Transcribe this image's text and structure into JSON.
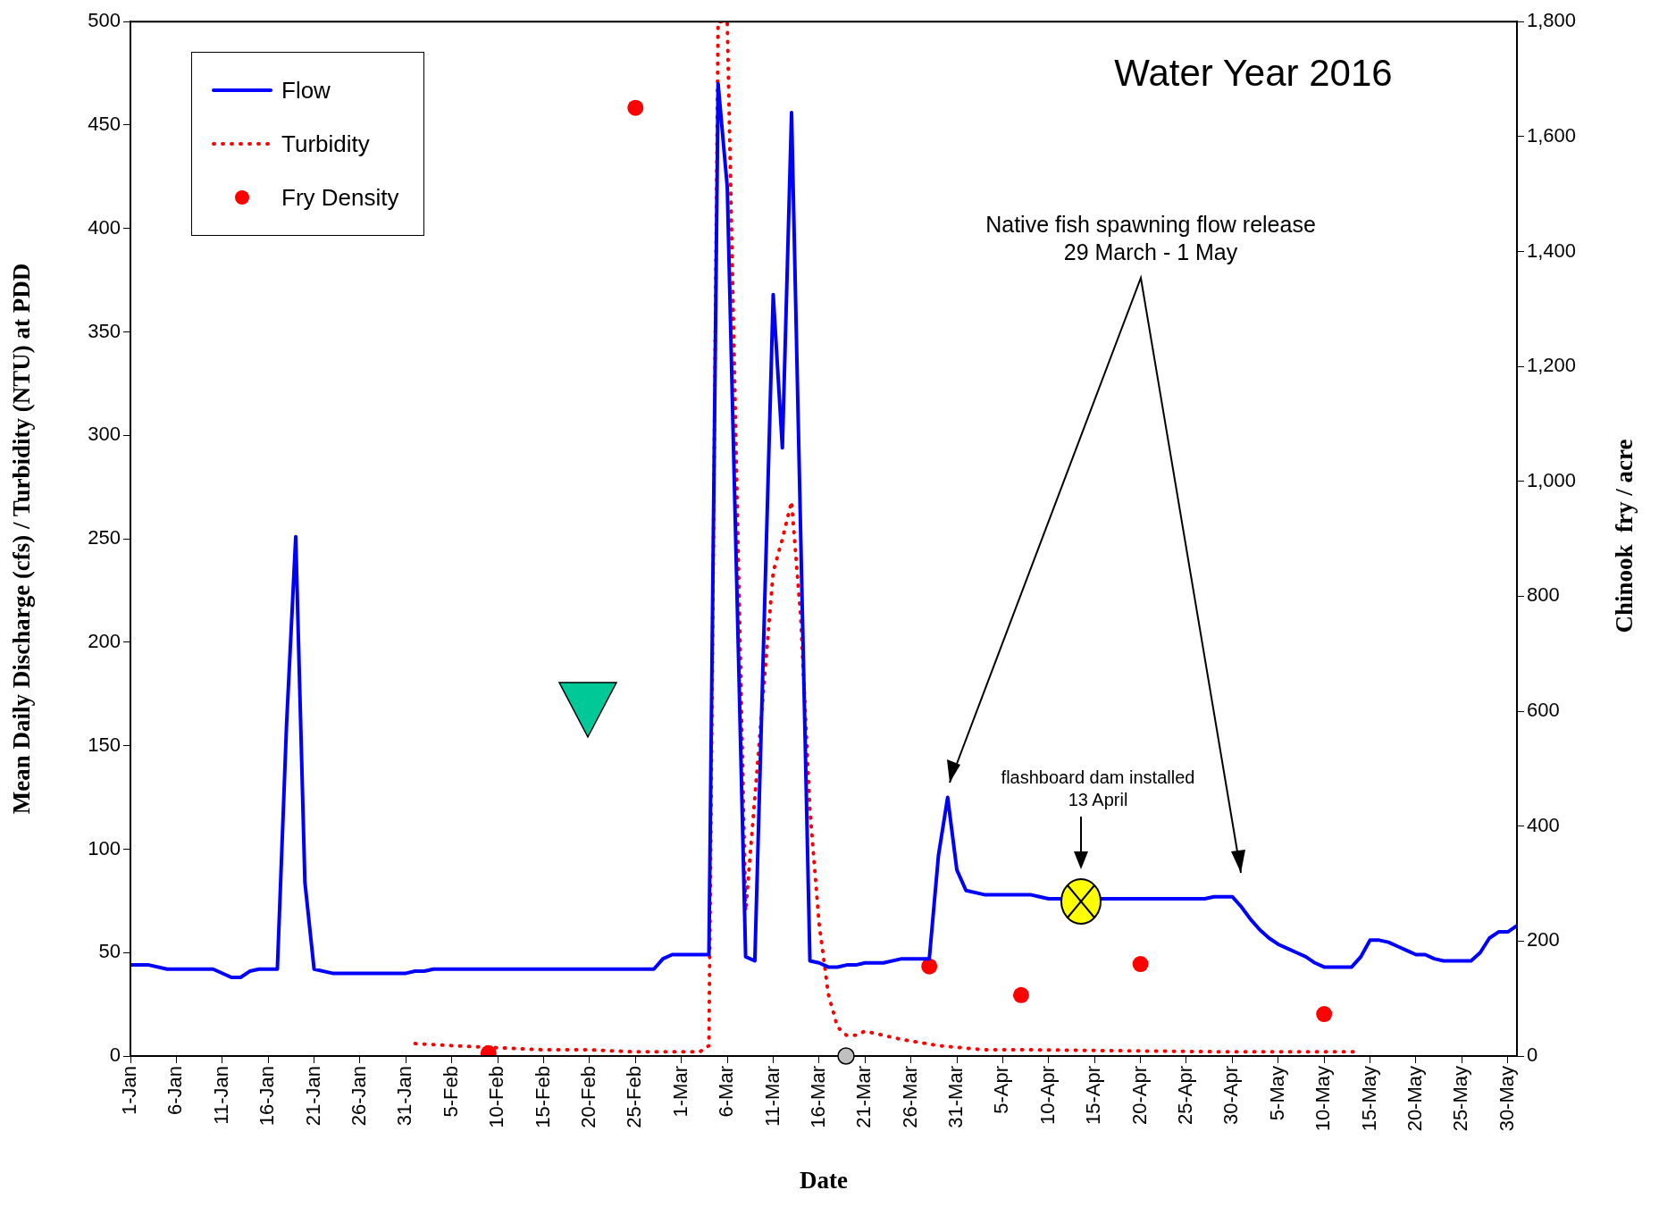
{
  "chart_data": {
    "type": "line",
    "title": "Water Year 2016",
    "xlabel": "Date",
    "ylabel": "Mean Daily Discharge (cfs) / Turbidity (NTU) at PDD",
    "y2label": "Chinook  fry / acre",
    "xlim": [
      "--01-01",
      "--05-31"
    ],
    "xticks": [
      {
        "value": "--01-01",
        "label": "1-Jan"
      },
      {
        "value": "--01-06",
        "label": "6-Jan"
      },
      {
        "value": "--01-11",
        "label": "11-Jan"
      },
      {
        "value": "--01-16",
        "label": "16-Jan"
      },
      {
        "value": "--01-21",
        "label": "21-Jan"
      },
      {
        "value": "--01-26",
        "label": "26-Jan"
      },
      {
        "value": "--01-31",
        "label": "31-Jan"
      },
      {
        "value": "--02-05",
        "label": "5-Feb"
      },
      {
        "value": "--02-10",
        "label": "10-Feb"
      },
      {
        "value": "--02-15",
        "label": "15-Feb"
      },
      {
        "value": "--02-20",
        "label": "20-Feb"
      },
      {
        "value": "--02-25",
        "label": "25-Feb"
      },
      {
        "value": "--03-01",
        "label": "1-Mar"
      },
      {
        "value": "--03-06",
        "label": "6-Mar"
      },
      {
        "value": "--03-11",
        "label": "11-Mar"
      },
      {
        "value": "--03-16",
        "label": "16-Mar"
      },
      {
        "value": "--03-21",
        "label": "21-Mar"
      },
      {
        "value": "--03-26",
        "label": "26-Mar"
      },
      {
        "value": "--03-31",
        "label": "31-Mar"
      },
      {
        "value": "--04-05",
        "label": "5-Apr"
      },
      {
        "value": "--04-10",
        "label": "10-Apr"
      },
      {
        "value": "--04-15",
        "label": "15-Apr"
      },
      {
        "value": "--04-20",
        "label": "20-Apr"
      },
      {
        "value": "--04-25",
        "label": "25-Apr"
      },
      {
        "value": "--04-30",
        "label": "30-Apr"
      },
      {
        "value": "--05-05",
        "label": "5-May"
      },
      {
        "value": "--05-10",
        "label": "10-May"
      },
      {
        "value": "--05-15",
        "label": "15-May"
      },
      {
        "value": "--05-20",
        "label": "20-May"
      },
      {
        "value": "--05-25",
        "label": "25-May"
      },
      {
        "value": "--05-30",
        "label": "30-May"
      }
    ],
    "ylim": [
      0,
      500
    ],
    "yticks": [
      0,
      50,
      100,
      150,
      200,
      250,
      300,
      350,
      400,
      450,
      500
    ],
    "y2lim": [
      0,
      1800
    ],
    "y2ticks": [
      0,
      200,
      400,
      600,
      800,
      {
        "value": 1000,
        "label": "1,000"
      },
      {
        "value": 1200,
        "label": "1,200"
      },
      {
        "value": 1400,
        "label": "1,400"
      },
      {
        "value": 1600,
        "label": "1,600"
      },
      {
        "value": 1800,
        "label": "1,800"
      }
    ],
    "legend": "top left",
    "series": [
      {
        "name": "Flow",
        "type": "line",
        "color": "#0000ff",
        "line_style": "solid",
        "marker": "none",
        "x": [
          "--01-01",
          "--01-03",
          "--01-05",
          "--01-10",
          "--01-12",
          "--01-13",
          "--01-14",
          "--01-15",
          "--01-17",
          "--01-18",
          "--01-19",
          "--01-20",
          "--01-21",
          "--01-23",
          "--01-31",
          "--02-01",
          "--02-02",
          "--02-03",
          "--02-27",
          "--02-28",
          "--02-29",
          "--03-04",
          "--03-05",
          "--03-06",
          "--03-08",
          "--03-09",
          "--03-11",
          "--03-12",
          "--03-13",
          "--03-15",
          "--03-16",
          "--03-17",
          "--03-18",
          "--03-19",
          "--03-20",
          "--03-21",
          "--03-23",
          "--03-25",
          "--03-28",
          "--03-29",
          "--03-30",
          "--03-31",
          "--04-01",
          "--04-03",
          "--04-08",
          "--04-09",
          "--04-10",
          "--04-27",
          "--04-28",
          "--04-30",
          "--05-01",
          "--05-02",
          "--05-03",
          "--05-04",
          "--05-05",
          "--05-06",
          "--05-07",
          "--05-08",
          "--05-09",
          "--05-10",
          "--05-13",
          "--05-14",
          "--05-15",
          "--05-16",
          "--05-17",
          "--05-18",
          "--05-19",
          "--05-20",
          "--05-21",
          "--05-22",
          "--05-23",
          "--05-26",
          "--05-27",
          "--05-28",
          "--05-29",
          "--05-30",
          "--05-31"
        ],
        "values": [
          44,
          44,
          42,
          42,
          38,
          38,
          41,
          42,
          42,
          160,
          251,
          84,
          42,
          40,
          40,
          41,
          41,
          42,
          42,
          47,
          49,
          49,
          470,
          420,
          48,
          46,
          368,
          294,
          456,
          46,
          45,
          43,
          43,
          44,
          44,
          45,
          45,
          47,
          47,
          97,
          125,
          90,
          80,
          78,
          78,
          77,
          76,
          76,
          77,
          77,
          72,
          66,
          61,
          57,
          54,
          52,
          50,
          48,
          45,
          43,
          43,
          48,
          56,
          56,
          55,
          53,
          51,
          49,
          49,
          47,
          46,
          46,
          50,
          57,
          60,
          60,
          63
        ]
      },
      {
        "name": "Turbidity",
        "type": "line",
        "color": "#ff0000",
        "line_style": "dotted",
        "marker": "none",
        "x": [
          "--02-01",
          "--02-05",
          "--02-10",
          "--02-15",
          "--02-20",
          "--02-25",
          "--03-03",
          "--03-04",
          "--03-05",
          "--03-06",
          "--03-08",
          "--03-10",
          "--03-11",
          "--03-12",
          "--03-13",
          "--03-14",
          "--03-15",
          "--03-16",
          "--03-17",
          "--03-18",
          "--03-19",
          "--03-20",
          "--03-21",
          "--03-23",
          "--03-25",
          "--03-29",
          "--04-03",
          "--04-08",
          "--04-30",
          "--05-14"
        ],
        "values": [
          6,
          5,
          4,
          3,
          3,
          2,
          2,
          5,
          500,
          500,
          70,
          180,
          234,
          250,
          268,
          212,
          119,
          64,
          30,
          14,
          10,
          10,
          12,
          10,
          8,
          5,
          3,
          3,
          2,
          2
        ]
      },
      {
        "name": "Fry Density",
        "type": "scatter",
        "axis": "y2",
        "color": "#ff0000",
        "marker": "circle",
        "x": [
          "--02-09",
          "--02-25",
          "--03-28",
          "--04-07",
          "--04-20",
          "--05-10"
        ],
        "values": [
          5,
          1650,
          156,
          106,
          160,
          73
        ]
      }
    ],
    "annotations": [
      "Native fish spawning flow release\n29 March - 1 May",
      "flashboard dam installed\n13 April"
    ]
  }
}
